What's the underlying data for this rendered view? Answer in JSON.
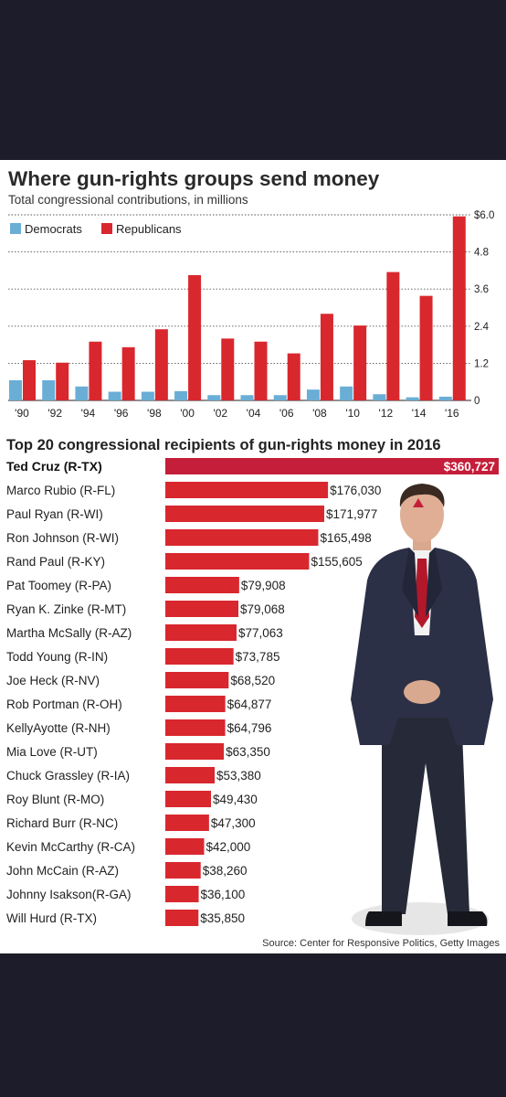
{
  "chart_data": [
    {
      "type": "bar",
      "title": "Where gun-rights groups send money",
      "subtitle": "Total congressional contributions, in millions",
      "categories": [
        "'90",
        "'92",
        "'94",
        "'96",
        "'98",
        "'00",
        "'02",
        "'04",
        "'06",
        "'08",
        "'10",
        "'12",
        "'14",
        "'16"
      ],
      "series": [
        {
          "name": "Democrats",
          "color": "#6aaed6",
          "values": [
            0.65,
            0.65,
            0.45,
            0.28,
            0.28,
            0.3,
            0.17,
            0.17,
            0.17,
            0.35,
            0.45,
            0.2,
            0.1,
            0.12
          ]
        },
        {
          "name": "Republicans",
          "color": "#d9272e",
          "values": [
            1.3,
            1.22,
            1.9,
            1.72,
            2.3,
            4.05,
            2.0,
            1.9,
            1.52,
            2.8,
            2.42,
            4.15,
            3.38,
            5.95
          ]
        }
      ],
      "ylim": [
        0,
        6.0
      ],
      "yticks": [
        "$6.0",
        "4.8",
        "3.6",
        "2.4",
        "1.2",
        "0"
      ],
      "ytick_values": [
        6.0,
        4.8,
        3.6,
        2.4,
        1.2,
        0
      ],
      "grid": true,
      "legend": "top-left",
      "xlabel": "",
      "ylabel": ""
    },
    {
      "type": "bar",
      "orientation": "horizontal",
      "title": "Top 20 congressional recipients of gun-rights money in 2016",
      "categories": [
        "Ted Cruz (R-TX)",
        "Marco Rubio (R-FL)",
        "Paul Ryan (R-WI)",
        "Ron Johnson (R-WI)",
        "Rand Paul (R-KY)",
        "Pat Toomey (R-PA)",
        "Ryan K. Zinke (R-MT)",
        "Martha McSally (R-AZ)",
        "Todd Young (R-IN)",
        "Joe Heck (R-NV)",
        "Rob Portman (R-OH)",
        "KellyAyotte (R-NH)",
        "Mia Love (R-UT)",
        "Chuck Grassley (R-IA)",
        "Roy Blunt (R-MO)",
        "Richard Burr (R-NC)",
        "Kevin McCarthy (R-CA)",
        "John McCain (R-AZ)",
        "Johnny  Isakson(R-GA)",
        "Will Hurd (R-TX)"
      ],
      "values": [
        360727,
        176030,
        171977,
        165498,
        155605,
        79908,
        79068,
        77063,
        73785,
        68520,
        64877,
        64796,
        63350,
        53380,
        49430,
        47300,
        42000,
        38260,
        36100,
        35850
      ],
      "labels": [
        "$360,727",
        "$176,030",
        "$171,977",
        "$165,498",
        "$155,605",
        "$79,908",
        "$79,068",
        "$77,063",
        "$73,785",
        "$68,520",
        "$64,877",
        "$64,796",
        "$63,350",
        "$53,380",
        "$49,430",
        "$47,300",
        "$42,000",
        "$38,260",
        "$36,100",
        "$35,850"
      ],
      "color": "#d9272e",
      "highlight_color": "#c41e3a",
      "xlabel": "",
      "ylabel": ""
    }
  ],
  "source": "Source: Center for Responsive Politics, Getty Images",
  "photo": {
    "icon": "man-in-suit-photo"
  }
}
